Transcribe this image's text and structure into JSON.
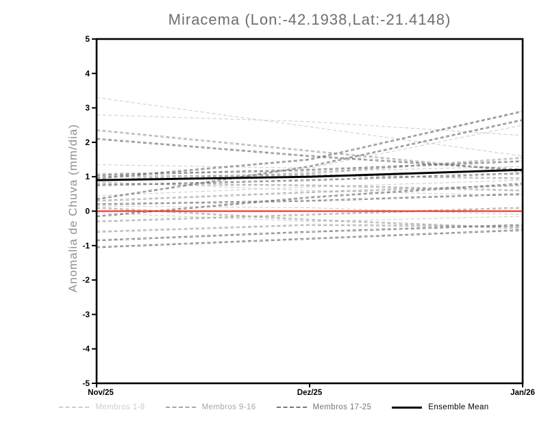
{
  "title": "Miracema (Lon:-42.1938,Lat:-21.4148)",
  "y_axis": {
    "label": "Anomalia de Chuva (mm/dia)"
  },
  "legend": {
    "items": [
      {
        "label": "Membros 1-8",
        "color": "#cdcdcd",
        "line_style": "dashed"
      },
      {
        "label": "Membros 9-16",
        "color": "#a6a6a6",
        "line_style": "dashed"
      },
      {
        "label": "Membros 17-25",
        "color": "#767676",
        "line_style": "dashed"
      },
      {
        "label": "Ensemble Mean",
        "color": "#000000",
        "line_style": "solid"
      }
    ]
  },
  "chart_data": {
    "type": "line",
    "title": "Miracema (Lon:-42.1938,Lat:-21.4148)",
    "xlabel": "",
    "ylabel": "Anomalia de Chuva (mm/dia)",
    "x_categories": [
      "Nov/25",
      "Dez/25",
      "Jan/26"
    ],
    "y_ticks": [
      -5,
      -4,
      -3,
      -2,
      -1,
      0,
      1,
      2,
      3,
      4,
      5
    ],
    "ylim": [
      -5,
      5
    ],
    "grid": false,
    "legend_position": "bottom",
    "frame_color": "#000000",
    "group_colors": {
      "1-8": "#cdcdcd",
      "9-16": "#a6a6a6",
      "17-25": "#767676"
    },
    "members": [
      {
        "group": "1-8",
        "values": [
          3.3,
          2.45,
          1.6
        ]
      },
      {
        "group": "1-8",
        "values": [
          2.8,
          2.6,
          2.2
        ]
      },
      {
        "group": "1-8",
        "values": [
          1.35,
          1.25,
          2.5
        ]
      },
      {
        "group": "1-8",
        "values": [
          1.1,
          1.15,
          1.3
        ]
      },
      {
        "group": "1-8",
        "values": [
          0.85,
          0.6,
          0.45
        ]
      },
      {
        "group": "1-8",
        "values": [
          0.45,
          0.7,
          0.9
        ]
      },
      {
        "group": "1-8",
        "values": [
          0.15,
          0.1,
          -0.1
        ]
      },
      {
        "group": "1-8",
        "values": [
          -0.05,
          -0.3,
          -0.15
        ]
      },
      {
        "group": "9-16",
        "values": [
          2.35,
          1.75,
          1.15
        ]
      },
      {
        "group": "9-16",
        "values": [
          1.0,
          1.05,
          0.95
        ]
      },
      {
        "group": "9-16",
        "values": [
          0.9,
          1.1,
          1.55
        ]
      },
      {
        "group": "9-16",
        "values": [
          0.3,
          0.55,
          0.75
        ]
      },
      {
        "group": "9-16",
        "values": [
          0.1,
          -0.25,
          -0.5
        ]
      },
      {
        "group": "9-16",
        "values": [
          -0.3,
          -0.1,
          0.1
        ]
      },
      {
        "group": "9-16",
        "values": [
          -0.6,
          -0.4,
          -0.45
        ]
      },
      {
        "group": "9-16",
        "values": [
          0.8,
          0.75,
          0.6
        ]
      },
      {
        "group": "17-25",
        "values": [
          2.1,
          1.6,
          1.2
        ]
      },
      {
        "group": "17-25",
        "values": [
          1.05,
          1.2,
          1.45
        ]
      },
      {
        "group": "17-25",
        "values": [
          0.95,
          1.5,
          2.9
        ]
      },
      {
        "group": "17-25",
        "values": [
          0.75,
          0.9,
          1.1
        ]
      },
      {
        "group": "17-25",
        "values": [
          0.35,
          1.3,
          2.65
        ]
      },
      {
        "group": "17-25",
        "values": [
          0.2,
          0.3,
          0.5
        ]
      },
      {
        "group": "17-25",
        "values": [
          -0.15,
          0.4,
          0.8
        ]
      },
      {
        "group": "17-25",
        "values": [
          -0.85,
          -0.6,
          -0.4
        ]
      },
      {
        "group": "17-25",
        "values": [
          -1.05,
          -0.8,
          -0.55
        ]
      }
    ],
    "ensemble_mean": {
      "label": "Ensemble Mean",
      "color": "#000000",
      "values": [
        0.9,
        1.0,
        1.2
      ]
    },
    "zero_line": {
      "color": "#ee3a2e",
      "values": [
        0,
        0,
        0
      ]
    }
  }
}
